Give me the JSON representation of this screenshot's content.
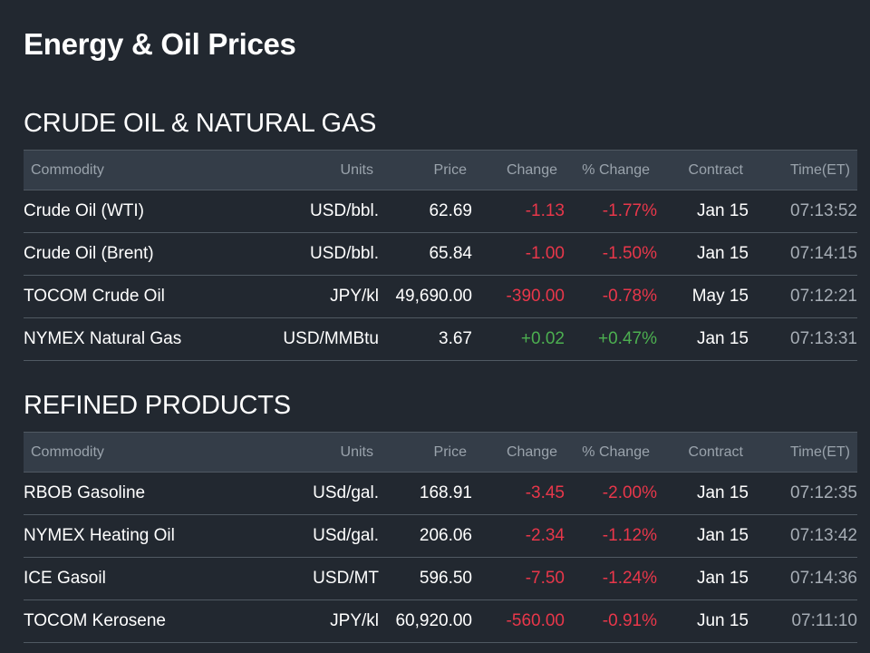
{
  "page_title": "Energy & Oil Prices",
  "colors": {
    "background": "#222830",
    "header_bg": "#343d48",
    "negative": "#e8374a",
    "positive": "#4caf50",
    "muted": "#a6adb5"
  },
  "columns": {
    "commodity": "Commodity",
    "units": "Units",
    "price": "Price",
    "change": "Change",
    "pct_change": "% Change",
    "contract": "Contract",
    "time": "Time(ET)"
  },
  "sections": [
    {
      "title": "CRUDE OIL & NATURAL GAS",
      "rows": [
        {
          "commodity": "Crude Oil (WTI)",
          "units": "USD/bbl.",
          "price": "62.69",
          "change": "-1.13",
          "pct_change": "-1.77%",
          "direction": "down",
          "contract": "Jan 15",
          "time": "07:13:52"
        },
        {
          "commodity": "Crude Oil (Brent)",
          "units": "USD/bbl.",
          "price": "65.84",
          "change": "-1.00",
          "pct_change": "-1.50%",
          "direction": "down",
          "contract": "Jan 15",
          "time": "07:14:15"
        },
        {
          "commodity": "TOCOM Crude Oil",
          "units": "JPY/kl",
          "price": "49,690.00",
          "change": "-390.00",
          "pct_change": "-0.78%",
          "direction": "down",
          "contract": "May 15",
          "time": "07:12:21"
        },
        {
          "commodity": "NYMEX Natural Gas",
          "units": "USD/MMBtu",
          "price": "3.67",
          "change": "+0.02",
          "pct_change": "+0.47%",
          "direction": "up",
          "contract": "Jan 15",
          "time": "07:13:31"
        }
      ]
    },
    {
      "title": "REFINED PRODUCTS",
      "rows": [
        {
          "commodity": "RBOB Gasoline",
          "units": "USd/gal.",
          "price": "168.91",
          "change": "-3.45",
          "pct_change": "-2.00%",
          "direction": "down",
          "contract": "Jan 15",
          "time": "07:12:35"
        },
        {
          "commodity": "NYMEX Heating Oil",
          "units": "USd/gal.",
          "price": "206.06",
          "change": "-2.34",
          "pct_change": "-1.12%",
          "direction": "down",
          "contract": "Jan 15",
          "time": "07:13:42"
        },
        {
          "commodity": "ICE Gasoil",
          "units": "USD/MT",
          "price": "596.50",
          "change": "-7.50",
          "pct_change": "-1.24%",
          "direction": "down",
          "contract": "Jan 15",
          "time": "07:14:36"
        },
        {
          "commodity": "TOCOM Kerosene",
          "units": "JPY/kl",
          "price": "60,920.00",
          "change": "-560.00",
          "pct_change": "-0.91%",
          "direction": "down",
          "contract": "Jun 15",
          "time": "07:11:10"
        }
      ]
    }
  ]
}
